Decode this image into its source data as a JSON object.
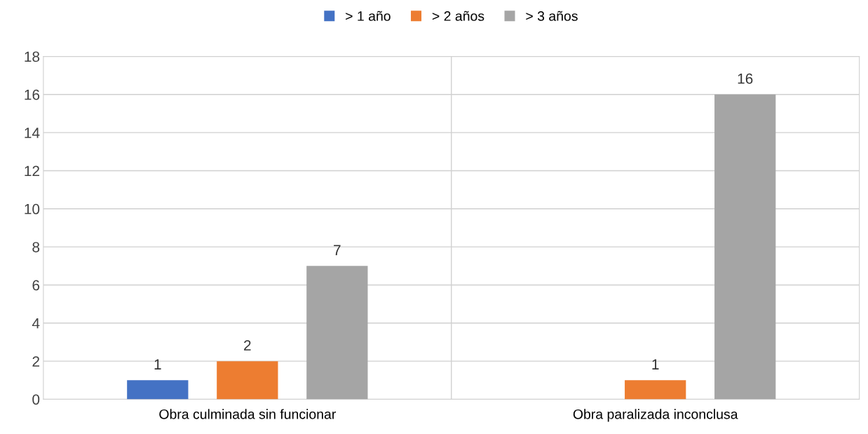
{
  "chart_data": {
    "type": "bar",
    "categories": [
      "Obra culminada sin funcionar",
      "Obra paralizada inconclusa"
    ],
    "series": [
      {
        "name": "> 1 año",
        "color": "#4472c4",
        "values": [
          1,
          null
        ]
      },
      {
        "name": "> 2 años",
        "color": "#ed7d31",
        "values": [
          2,
          1
        ]
      },
      {
        "name": "> 3 años",
        "color": "#a5a5a5",
        "values": [
          7,
          16
        ]
      }
    ],
    "ylim": [
      0,
      18
    ],
    "yticks": [
      0,
      2,
      4,
      6,
      8,
      10,
      12,
      14,
      16,
      18
    ],
    "grid": "y",
    "legend": "top",
    "data_labels": true
  }
}
